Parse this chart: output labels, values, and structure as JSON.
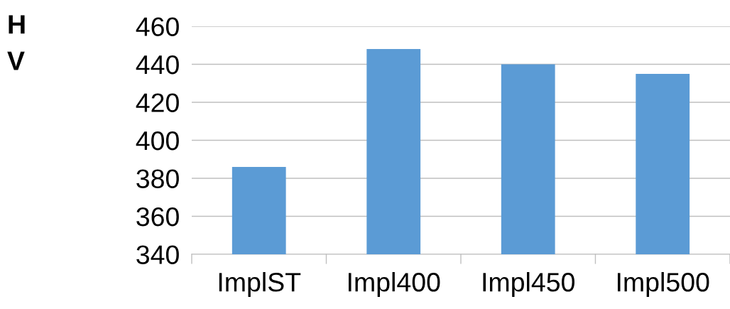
{
  "chart_data": {
    "type": "bar",
    "ylabel": "H\nV",
    "categories": [
      "ImplST",
      "Impl400",
      "Impl450",
      "Impl500"
    ],
    "values": [
      386,
      448,
      440,
      435
    ],
    "color": "#5b9bd5",
    "ylim": [
      340,
      460
    ],
    "yticks": [
      340,
      360,
      380,
      400,
      420,
      440,
      460
    ],
    "grid": "y",
    "legend": false
  }
}
